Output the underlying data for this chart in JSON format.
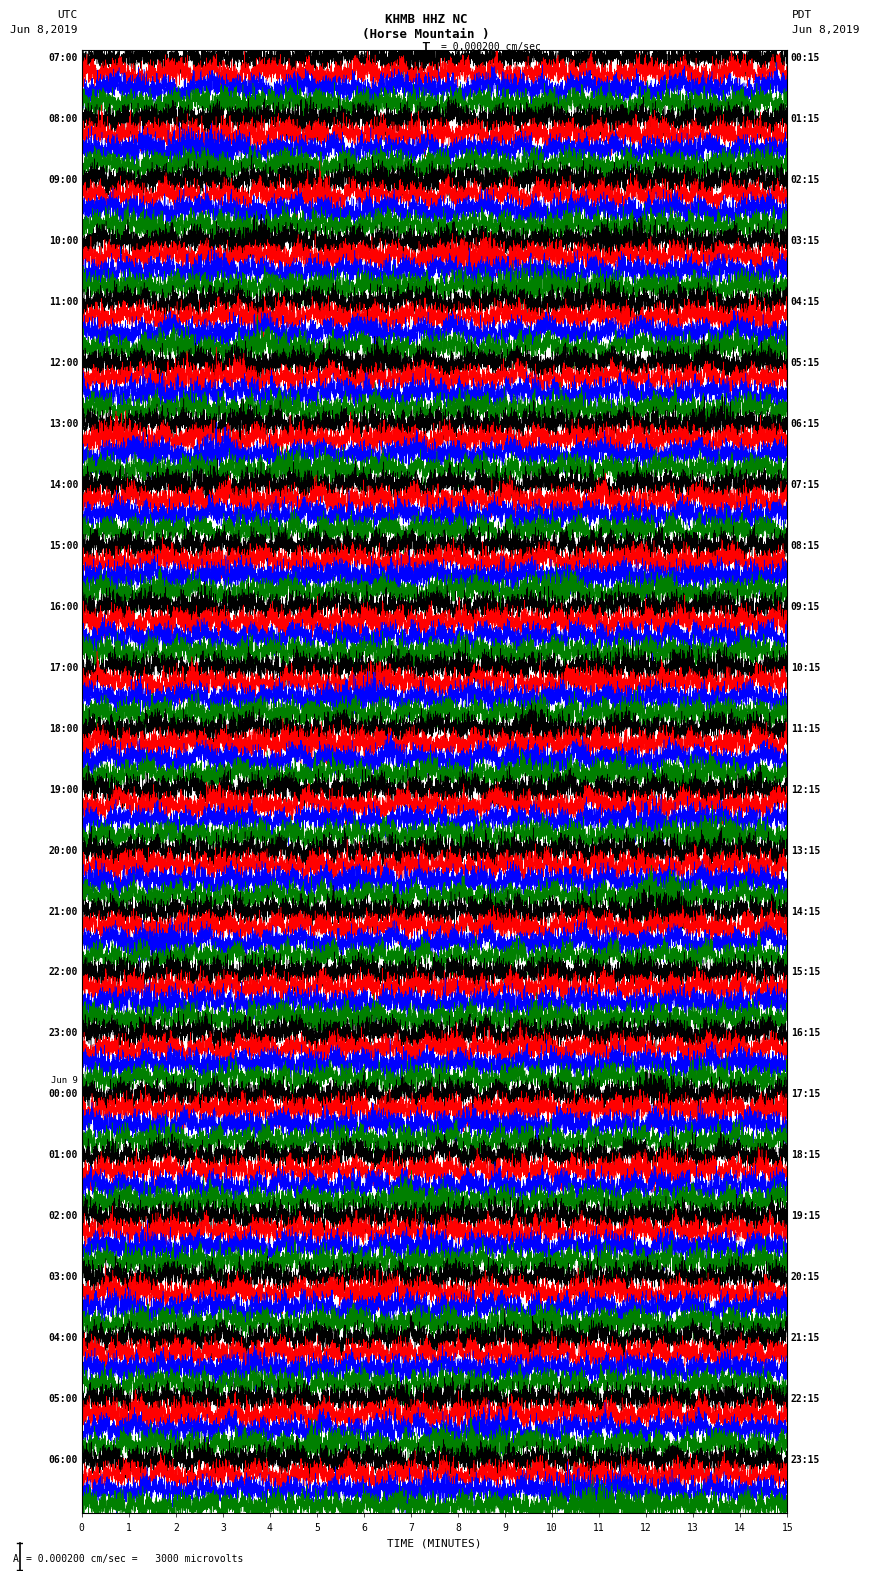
{
  "title_line1": "KHMB HHZ NC",
  "title_line2": "(Horse Mountain )",
  "scale_text": "I = 0.000200 cm/sec",
  "scale_label": "A  = 0.000200 cm/sec =   3000 microvolts",
  "xlabel": "TIME (MINUTES)",
  "left_header": "UTC",
  "left_date": "Jun 8,2019",
  "right_header": "PDT",
  "right_date": "Jun 8,2019",
  "trace_colors": [
    "black",
    "red",
    "blue",
    "green"
  ],
  "n_traces_per_block": 4,
  "minutes_per_block": 15,
  "utc_times": [
    "07:00",
    "08:00",
    "09:00",
    "10:00",
    "11:00",
    "12:00",
    "13:00",
    "14:00",
    "15:00",
    "16:00",
    "17:00",
    "18:00",
    "19:00",
    "20:00",
    "21:00",
    "22:00",
    "23:00",
    "Jun 9\n00:00",
    "01:00",
    "02:00",
    "03:00",
    "04:00",
    "05:00",
    "06:00"
  ],
  "pdt_times": [
    "00:15",
    "01:15",
    "02:15",
    "03:15",
    "04:15",
    "05:15",
    "06:15",
    "07:15",
    "08:15",
    "09:15",
    "10:15",
    "11:15",
    "12:15",
    "13:15",
    "14:15",
    "15:15",
    "16:15",
    "17:15",
    "18:15",
    "19:15",
    "20:15",
    "21:15",
    "22:15",
    "23:15"
  ],
  "fig_width": 8.5,
  "fig_height": 16.13,
  "bg_color": "white",
  "plot_bg_color": "white",
  "n_blocks": 24,
  "seed": 42
}
